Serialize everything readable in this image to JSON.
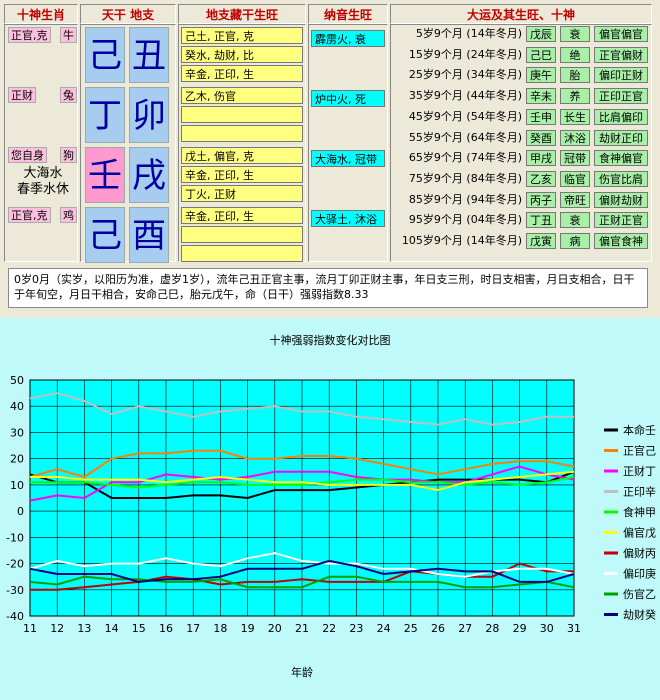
{
  "headers": {
    "ten_gods": "十神生肖",
    "stem_branch": "天干  地支",
    "hidden": "地支藏干生旺",
    "nayin": "纳音生旺",
    "luck": "大运及其生旺、十神"
  },
  "pillars": [
    {
      "god": "正官,克",
      "zodiac": "牛",
      "stem": "己",
      "branch": "丑",
      "stem_color": "sky",
      "hidden": [
        "己土, 正官, 克",
        "癸水, 劫财, 比",
        "辛金, 正印, 生"
      ],
      "nayin": "霹雳火, 衰"
    },
    {
      "god": "正财",
      "zodiac": "兔",
      "stem": "丁",
      "branch": "卯",
      "stem_color": "sky",
      "hidden": [
        "乙木, 伤官",
        "",
        ""
      ],
      "nayin": "炉中火, 死"
    },
    {
      "god": "您自身",
      "zodiac": "狗",
      "stem": "壬",
      "branch": "戌",
      "stem_color": "pink",
      "hidden": [
        "戊土, 偏官, 克",
        "辛金, 正印, 生",
        "丁火, 正财"
      ],
      "nayin": "大海水, 冠带"
    },
    {
      "god": "正官,克",
      "zodiac": "鸡",
      "stem": "己",
      "branch": "酉",
      "stem_color": "sky",
      "hidden": [
        "辛金, 正印, 生",
        "",
        ""
      ],
      "nayin": "大驿土, 沐浴"
    }
  ],
  "self_note": [
    "大海水",
    "春季水休"
  ],
  "luck": [
    {
      "age": "5岁9个月 (14年冬月)",
      "gz": "戊辰",
      "state": "衰",
      "gods": "偏官偏官"
    },
    {
      "age": "15岁9个月 (24年冬月)",
      "gz": "己巳",
      "state": "绝",
      "gods": "正官偏财"
    },
    {
      "age": "25岁9个月 (34年冬月)",
      "gz": "庚午",
      "state": "胎",
      "gods": "偏印正财"
    },
    {
      "age": "35岁9个月 (44年冬月)",
      "gz": "辛未",
      "state": "养",
      "gods": "正印正官"
    },
    {
      "age": "45岁9个月 (54年冬月)",
      "gz": "壬申",
      "state": "长生",
      "gods": "比肩偏印"
    },
    {
      "age": "55岁9个月 (64年冬月)",
      "gz": "癸酉",
      "state": "沐浴",
      "gods": "劫财正印"
    },
    {
      "age": "65岁9个月 (74年冬月)",
      "gz": "甲戌",
      "state": "冠带",
      "gods": "食神偏官"
    },
    {
      "age": "75岁9个月 (84年冬月)",
      "gz": "乙亥",
      "state": "临官",
      "gods": "伤官比肩"
    },
    {
      "age": "85岁9个月 (94年冬月)",
      "gz": "丙子",
      "state": "帝旺",
      "gods": "偏财劫财"
    },
    {
      "age": "95岁9个月 (04年冬月)",
      "gz": "丁丑",
      "state": "衰",
      "gods": "正财正官"
    },
    {
      "age": "105岁9个月 (14年冬月)",
      "gz": "戊寅",
      "state": "病",
      "gods": "偏官食神"
    }
  ],
  "description": "0岁0月（实岁，以阳历为准，虚岁1岁），流年己丑正官主事，流月丁卯正财主事，年日支三刑，时日支相害，月日支相合，日干于年旬空，月日干相合，安命己巳，胎元戊午，命（日干）强弱指数8.33",
  "chart_data": {
    "type": "line",
    "title": "十神强弱指数变化对比图",
    "xlabel": "年龄",
    "ylabel": "",
    "x": [
      11,
      12,
      13,
      14,
      15,
      16,
      17,
      18,
      19,
      20,
      21,
      22,
      23,
      24,
      25,
      26,
      27,
      28,
      29,
      30,
      31
    ],
    "ylim": [
      -40,
      50
    ],
    "yticks": [
      50,
      40,
      30,
      20,
      10,
      0,
      -10,
      -20,
      -30,
      -40
    ],
    "grid": true,
    "legend_position": "right",
    "series": [
      {
        "name": "本命壬",
        "color": "#000000",
        "values": [
          14,
          11,
          11,
          5,
          5,
          5,
          6,
          6,
          5,
          8,
          8,
          8,
          9,
          10,
          11,
          12,
          12,
          12,
          12,
          11,
          15
        ]
      },
      {
        "name": "正官己",
        "color": "#ff8000",
        "values": [
          13,
          16,
          13,
          20,
          22,
          22,
          23,
          23,
          20,
          20,
          21,
          21,
          20,
          18,
          16,
          14,
          16,
          18,
          19,
          19,
          17
        ]
      },
      {
        "name": "正财丁",
        "color": "#ff00ff",
        "values": [
          4,
          6,
          5,
          11,
          11,
          14,
          13,
          12,
          13,
          15,
          15,
          15,
          13,
          12,
          12,
          11,
          11,
          14,
          17,
          14,
          12
        ]
      },
      {
        "name": "正印辛",
        "color": "#c0c0c0",
        "values": [
          43,
          45,
          42,
          37,
          40,
          38,
          36,
          38,
          39,
          40,
          38,
          38,
          36,
          35,
          34,
          33,
          35,
          33,
          34,
          36,
          36
        ]
      },
      {
        "name": "食神甲",
        "color": "#00ff00",
        "values": [
          11,
          11,
          11,
          10,
          9,
          10,
          11,
          11,
          10,
          10,
          10,
          11,
          12,
          12,
          11,
          11,
          10,
          11,
          10,
          11,
          13
        ]
      },
      {
        "name": "偏官戊",
        "color": "#ffff00",
        "values": [
          13,
          13,
          12,
          12,
          12,
          11,
          12,
          13,
          12,
          11,
          11,
          10,
          10,
          10,
          10,
          8,
          11,
          12,
          13,
          14,
          15
        ]
      },
      {
        "name": "偏财丙",
        "color": "#c00000",
        "values": [
          -30,
          -30,
          -29,
          -28,
          -27,
          -25,
          -26,
          -28,
          -27,
          -27,
          -26,
          -27,
          -27,
          -27,
          -23,
          -24,
          -25,
          -25,
          -20,
          -23,
          -23
        ]
      },
      {
        "name": "偏印庚",
        "color": "#ffffff",
        "values": [
          -22,
          -19,
          -21,
          -20,
          -20,
          -18,
          -20,
          -21,
          -18,
          -16,
          -19,
          -20,
          -20,
          -22,
          -22,
          -24,
          -25,
          -23,
          -22,
          -22,
          -24
        ]
      },
      {
        "name": "伤官乙",
        "color": "#00a000",
        "values": [
          -27,
          -28,
          -25,
          -26,
          -26,
          -27,
          -27,
          -26,
          -29,
          -29,
          -29,
          -25,
          -25,
          -27,
          -27,
          -27,
          -29,
          -29,
          -28,
          -27,
          -29
        ]
      },
      {
        "name": "劫财癸",
        "color": "#000080",
        "values": [
          -22,
          -24,
          -24,
          -24,
          -27,
          -26,
          -26,
          -25,
          -22,
          -22,
          -22,
          -19,
          -21,
          -24,
          -23,
          -22,
          -23,
          -23,
          -27,
          -27,
          -24
        ]
      }
    ]
  }
}
